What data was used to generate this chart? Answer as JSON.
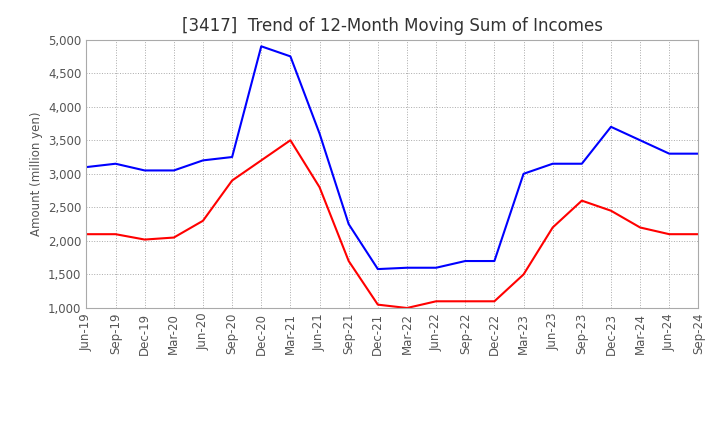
{
  "title": "[3417]  Trend of 12-Month Moving Sum of Incomes",
  "ylabel": "Amount (million yen)",
  "ylim": [
    1000,
    5000
  ],
  "yticks": [
    1000,
    1500,
    2000,
    2500,
    3000,
    3500,
    4000,
    4500,
    5000
  ],
  "x_labels": [
    "Jun-19",
    "Sep-19",
    "Dec-19",
    "Mar-20",
    "Jun-20",
    "Sep-20",
    "Dec-20",
    "Mar-21",
    "Jun-21",
    "Sep-21",
    "Dec-21",
    "Mar-22",
    "Jun-22",
    "Sep-22",
    "Dec-22",
    "Mar-23",
    "Jun-23",
    "Sep-23",
    "Dec-23",
    "Mar-24",
    "Jun-24",
    "Sep-24"
  ],
  "ordinary_income": [
    3100,
    3150,
    3050,
    3050,
    3200,
    3250,
    4900,
    4750,
    3600,
    2250,
    1580,
    1600,
    1600,
    1700,
    1700,
    3000,
    3150,
    3150,
    3700,
    3500,
    3300,
    3300
  ],
  "net_income": [
    2100,
    2100,
    2020,
    2050,
    2300,
    2900,
    3200,
    3500,
    2800,
    1700,
    1050,
    1000,
    1100,
    1100,
    1100,
    1500,
    2200,
    2600,
    2450,
    2200,
    2100,
    2100
  ],
  "ordinary_color": "#0000ff",
  "net_color": "#ff0000",
  "background_color": "#ffffff",
  "grid_color": "#aaaaaa",
  "title_fontsize": 12,
  "axis_fontsize": 8.5,
  "legend_fontsize": 10
}
